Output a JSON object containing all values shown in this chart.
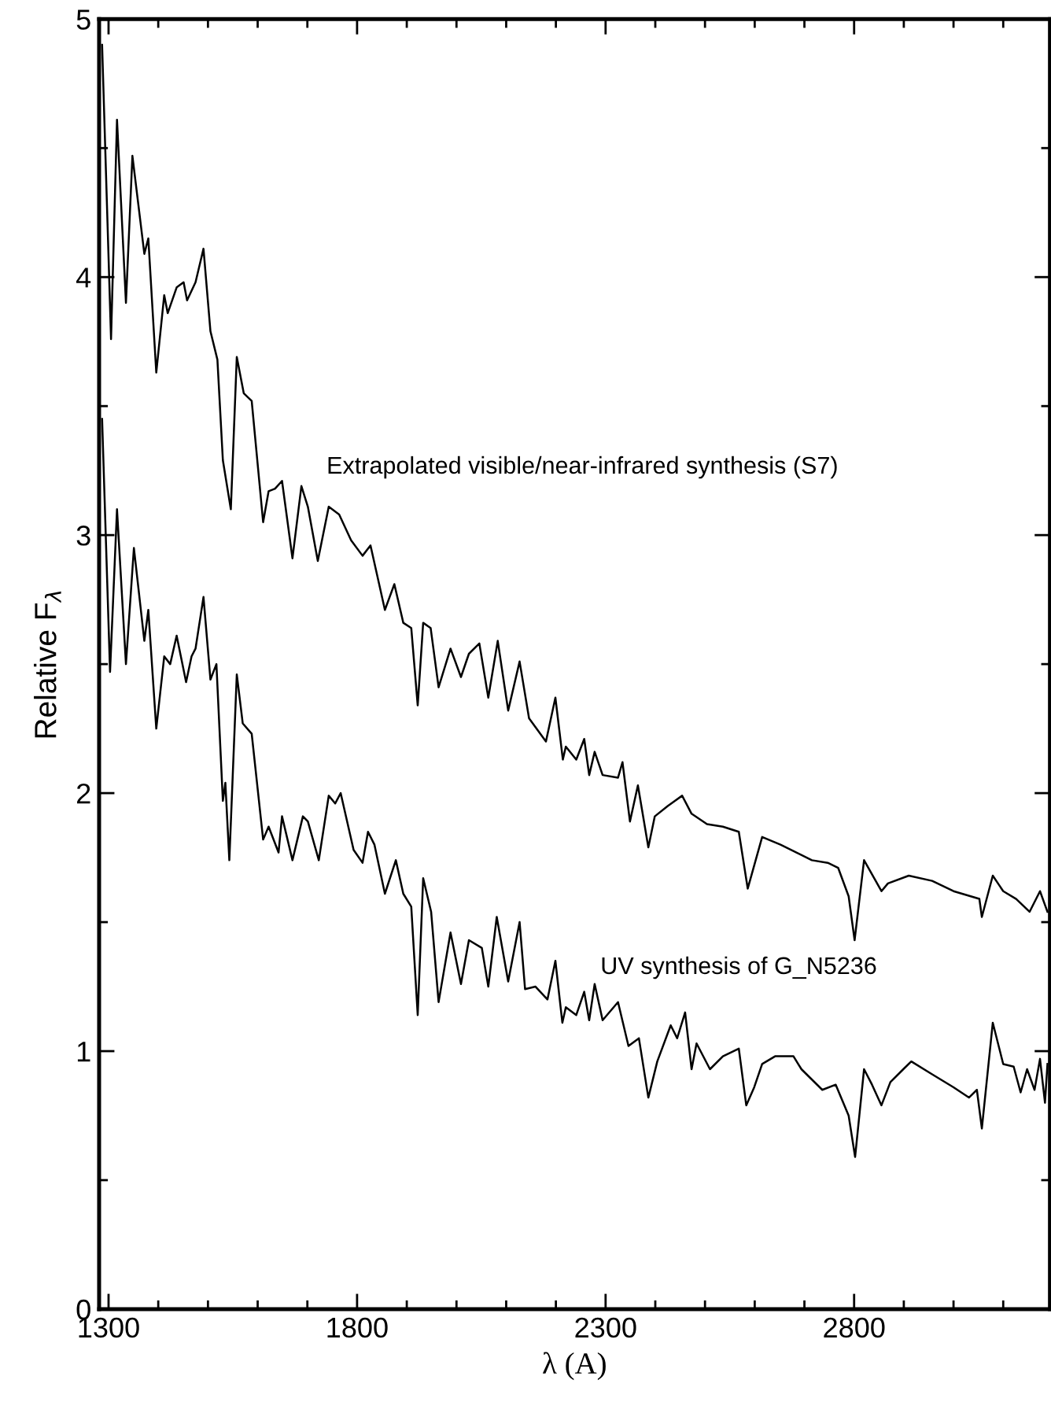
{
  "chart_data": {
    "type": "line",
    "xlabel": "λ (A)",
    "ylabel": "Relative F$_{λ}$",
    "xlim": [
      1281,
      3194
    ],
    "ylim": [
      0,
      5
    ],
    "xticks": [
      1300,
      {
        "value": 1400,
        "label": null
      },
      {
        "value": 1500,
        "label": null
      },
      {
        "value": 1600,
        "label": null
      },
      {
        "value": 1700,
        "label": null
      },
      1800,
      {
        "value": 1900,
        "label": null
      },
      {
        "value": 2000,
        "label": null
      },
      {
        "value": 2100,
        "label": null
      },
      {
        "value": 2200,
        "label": null
      },
      2300,
      {
        "value": 2400,
        "label": null
      },
      {
        "value": 2500,
        "label": null
      },
      {
        "value": 2600,
        "label": null
      },
      {
        "value": 2700,
        "label": null
      },
      2800,
      {
        "value": 2900,
        "label": null
      },
      {
        "value": 3000,
        "label": null
      },
      {
        "value": 3100,
        "label": null
      }
    ],
    "yticks": [
      0,
      {
        "value": 0.5,
        "label": null
      },
      1,
      {
        "value": 1.5,
        "label": null
      },
      2,
      {
        "value": 2.5,
        "label": null
      },
      3,
      {
        "value": 3.5,
        "label": null
      },
      4,
      {
        "value": 4.5,
        "label": null
      },
      5
    ],
    "grid": false,
    "marker": "none",
    "line_style": "solid",
    "series": [
      {
        "name": "Extrapolated visible/near-infrared synthesis (S7)",
        "color": "#000000",
        "x": [
          1287,
          1305,
          1317,
          1335,
          1348,
          1372,
          1380,
          1396,
          1412,
          1419,
          1437,
          1451,
          1458,
          1475,
          1491,
          1505,
          1519,
          1530,
          1546,
          1558,
          1572,
          1588,
          1611,
          1622,
          1635,
          1649,
          1670,
          1688,
          1701,
          1721,
          1743,
          1764,
          1788,
          1811,
          1827,
          1856,
          1875,
          1893,
          1909,
          1922,
          1933,
          1948,
          1964,
          1988,
          2009,
          2025,
          2046,
          2064,
          2083,
          2104,
          2127,
          2146,
          2180,
          2199,
          2214,
          2220,
          2241,
          2257,
          2267,
          2278,
          2294,
          2325,
          2334,
          2349,
          2365,
          2386,
          2399,
          2425,
          2454,
          2473,
          2504,
          2536,
          2568,
          2586,
          2615,
          2652,
          2684,
          2715,
          2747,
          2768,
          2789,
          2801,
          2820,
          2855,
          2868,
          2910,
          2957,
          3000,
          3052,
          3057,
          3079,
          3100,
          3126,
          3153,
          3174,
          3189
        ],
        "values": [
          4.9,
          3.76,
          4.61,
          3.9,
          4.47,
          4.09,
          4.15,
          3.63,
          3.93,
          3.86,
          3.96,
          3.98,
          3.91,
          3.98,
          4.11,
          3.79,
          3.68,
          3.29,
          3.1,
          3.69,
          3.55,
          3.52,
          3.05,
          3.17,
          3.18,
          3.21,
          2.91,
          3.19,
          3.11,
          2.9,
          3.11,
          3.08,
          2.98,
          2.92,
          2.96,
          2.71,
          2.81,
          2.66,
          2.64,
          2.34,
          2.66,
          2.64,
          2.41,
          2.56,
          2.45,
          2.54,
          2.58,
          2.37,
          2.59,
          2.32,
          2.51,
          2.29,
          2.2,
          2.37,
          2.13,
          2.18,
          2.13,
          2.21,
          2.07,
          2.16,
          2.07,
          2.06,
          2.12,
          1.89,
          2.03,
          1.79,
          1.91,
          1.95,
          1.99,
          1.92,
          1.88,
          1.87,
          1.85,
          1.63,
          1.83,
          1.8,
          1.77,
          1.74,
          1.73,
          1.71,
          1.6,
          1.43,
          1.74,
          1.62,
          1.65,
          1.68,
          1.66,
          1.62,
          1.59,
          1.52,
          1.68,
          1.62,
          1.59,
          1.54,
          1.62,
          1.54
        ]
      },
      {
        "name": "UV synthesis of G_N5236",
        "color": "#000000",
        "x": [
          1287,
          1303,
          1317,
          1335,
          1351,
          1372,
          1380,
          1396,
          1412,
          1424,
          1437,
          1456,
          1467,
          1475,
          1491,
          1505,
          1517,
          1530,
          1535,
          1543,
          1558,
          1570,
          1588,
          1611,
          1622,
          1642,
          1649,
          1670,
          1691,
          1701,
          1723,
          1743,
          1756,
          1767,
          1793,
          1811,
          1822,
          1835,
          1856,
          1878,
          1893,
          1909,
          1922,
          1933,
          1949,
          1964,
          1988,
          2009,
          2025,
          2051,
          2064,
          2081,
          2104,
          2127,
          2138,
          2159,
          2183,
          2199,
          2213,
          2220,
          2241,
          2257,
          2267,
          2278,
          2294,
          2325,
          2346,
          2367,
          2386,
          2404,
          2431,
          2444,
          2460,
          2473,
          2483,
          2510,
          2536,
          2568,
          2583,
          2599,
          2615,
          2641,
          2678,
          2694,
          2736,
          2763,
          2789,
          2802,
          2820,
          2836,
          2855,
          2873,
          2899,
          2915,
          2957,
          3000,
          3031,
          3047,
          3057,
          3079,
          3100,
          3121,
          3135,
          3148,
          3163,
          3174,
          3184,
          3189
        ],
        "values": [
          3.45,
          2.47,
          3.1,
          2.5,
          2.95,
          2.59,
          2.71,
          2.25,
          2.53,
          2.5,
          2.61,
          2.43,
          2.53,
          2.56,
          2.76,
          2.44,
          2.5,
          1.97,
          2.04,
          1.74,
          2.46,
          2.27,
          2.23,
          1.82,
          1.87,
          1.77,
          1.91,
          1.74,
          1.91,
          1.89,
          1.74,
          1.99,
          1.96,
          2.0,
          1.78,
          1.73,
          1.85,
          1.8,
          1.61,
          1.74,
          1.61,
          1.56,
          1.14,
          1.67,
          1.54,
          1.19,
          1.46,
          1.26,
          1.43,
          1.4,
          1.25,
          1.52,
          1.27,
          1.5,
          1.24,
          1.25,
          1.2,
          1.35,
          1.11,
          1.17,
          1.14,
          1.23,
          1.12,
          1.26,
          1.12,
          1.19,
          1.02,
          1.05,
          0.82,
          0.96,
          1.1,
          1.05,
          1.15,
          0.93,
          1.03,
          0.93,
          0.98,
          1.01,
          0.79,
          0.86,
          0.95,
          0.98,
          0.98,
          0.93,
          0.85,
          0.87,
          0.75,
          0.59,
          0.93,
          0.87,
          0.79,
          0.88,
          0.93,
          0.96,
          0.91,
          0.86,
          0.82,
          0.85,
          0.7,
          1.11,
          0.95,
          0.94,
          0.84,
          0.93,
          0.85,
          0.97,
          0.8,
          0.95
        ]
      }
    ]
  }
}
